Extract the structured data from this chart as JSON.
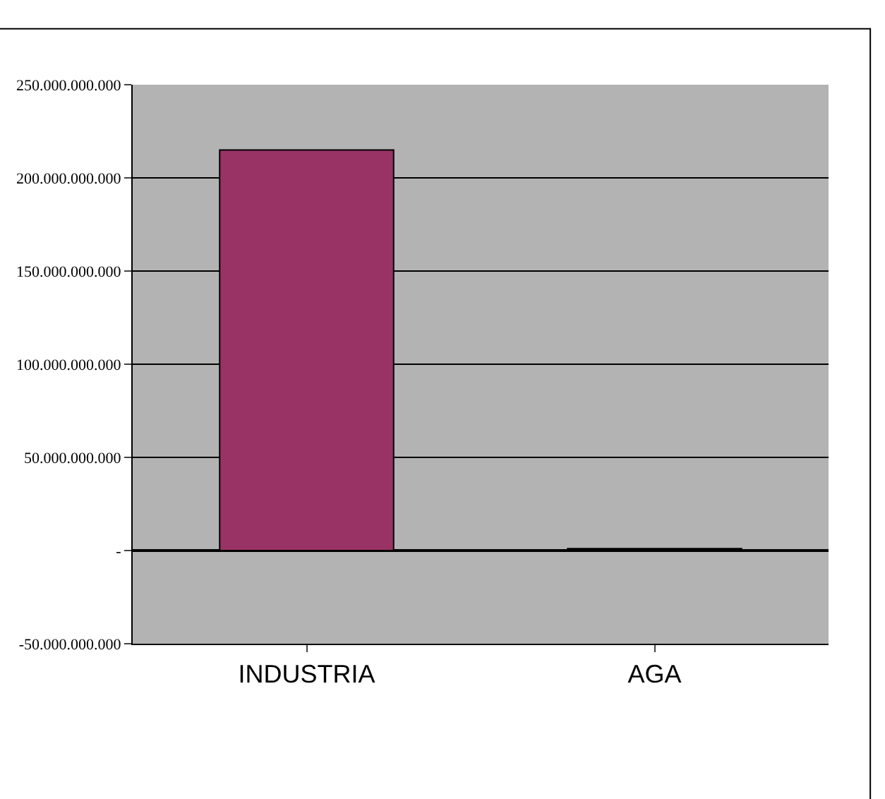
{
  "chart_data": {
    "type": "bar",
    "categories": [
      "INDUSTRIA",
      "AGA"
    ],
    "values": [
      215000000000,
      1000000000
    ],
    "colors": [
      "#993366",
      "#000000"
    ],
    "ylim": [
      -50000000000,
      250000000000
    ],
    "yticks": [
      {
        "value": -50000000000,
        "label": "-50.000.000.000"
      },
      {
        "value": 0,
        "label": "-"
      },
      {
        "value": 50000000000,
        "label": "50.000.000.000"
      },
      {
        "value": 100000000000,
        "label": "100.000.000.000"
      },
      {
        "value": 150000000000,
        "label": "150.000.000.000"
      },
      {
        "value": 200000000000,
        "label": "200.000.000.000"
      },
      {
        "value": 250000000000,
        "label": "250.000.000.000"
      }
    ],
    "grid": "y",
    "legend": false
  }
}
